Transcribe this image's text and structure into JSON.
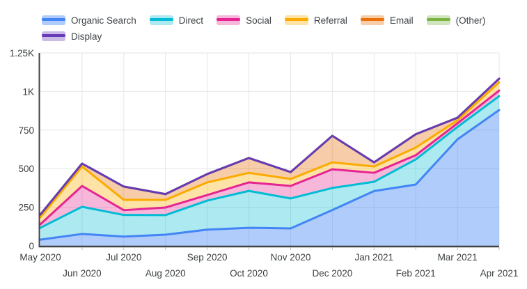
{
  "chart_data": {
    "type": "area",
    "stacked": true,
    "title": "",
    "xlabel": "",
    "ylabel": "",
    "ylim": [
      0,
      1250
    ],
    "grid": true,
    "legend_position": "top",
    "categories": [
      "May 2020",
      "Jun 2020",
      "Jul 2020",
      "Aug 2020",
      "Sep 2020",
      "Oct 2020",
      "Nov 2020",
      "Dec 2020",
      "Jan 2021",
      "Feb 2021",
      "Mar 2021",
      "Apr 2021"
    ],
    "yticks": [
      {
        "value": 0,
        "label": "0"
      },
      {
        "value": 250,
        "label": "250"
      },
      {
        "value": 500,
        "label": "500"
      },
      {
        "value": 750,
        "label": "750"
      },
      {
        "value": 1000,
        "label": "1K"
      },
      {
        "value": 1250,
        "label": "1.25K"
      }
    ],
    "series": [
      {
        "name": "Organic Search",
        "slug": "organic-search",
        "color": "#4285f4",
        "fill": "rgba(66,133,244,0.42)",
        "values": [
          40,
          77,
          60,
          72,
          105,
          117,
          113,
          232,
          355,
          397,
          690,
          880
        ]
      },
      {
        "name": "Direct",
        "slug": "direct",
        "color": "#00bcd4",
        "fill": "rgba(0,188,212,0.32)",
        "values": [
          77,
          176,
          140,
          127,
          188,
          239,
          194,
          143,
          60,
          163,
          80,
          90
        ]
      },
      {
        "name": "Social",
        "slug": "social",
        "color": "#e52592",
        "fill": "rgba(229,37,146,0.33)",
        "values": [
          23,
          135,
          31,
          49,
          36,
          55,
          81,
          121,
          58,
          27,
          24,
          36
        ]
      },
      {
        "name": "Referral",
        "slug": "referral",
        "color": "#fbab00",
        "fill": "rgba(251,171,0,0.35)",
        "values": [
          45,
          126,
          67,
          50,
          82,
          62,
          45,
          45,
          41,
          50,
          19,
          54
        ]
      },
      {
        "name": "Email",
        "slug": "email",
        "color": "#e8710a",
        "fill": "rgba(232,113,10,0.35)",
        "values": [
          18,
          19,
          86,
          37,
          54,
          96,
          45,
          172,
          27,
          86,
          17,
          23
        ]
      },
      {
        "name": "(Other)",
        "slug": "other",
        "color": "#7cb342",
        "fill": "rgba(124,179,66,0.35)",
        "values": [
          0,
          0,
          0,
          0,
          0,
          0,
          0,
          0,
          0,
          0,
          0,
          0
        ]
      },
      {
        "name": "Display",
        "slug": "display",
        "color": "#673ab7",
        "fill": "rgba(103,58,183,0.35)",
        "values": [
          0,
          0,
          0,
          0,
          0,
          0,
          0,
          0,
          0,
          0,
          0,
          0
        ]
      }
    ],
    "colors": {
      "grid": "#e6e6e6",
      "axis": "#424242",
      "tick": "#bdbdbd",
      "label_text": "#3c4043"
    }
  }
}
